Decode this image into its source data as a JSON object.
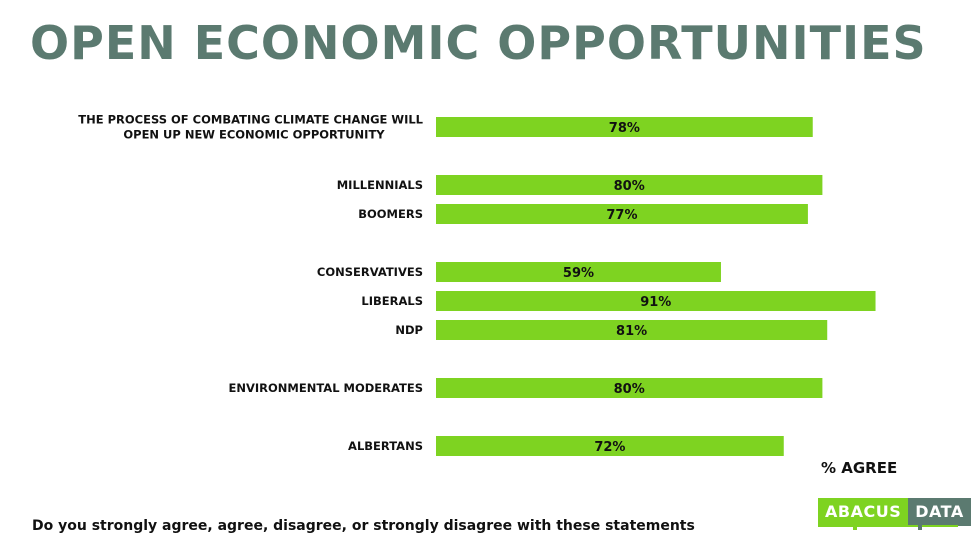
{
  "title": "OPEN ECONOMIC OPPORTUNITIES",
  "unit_label": "% AGREE",
  "footnote": "Do you strongly agree, agree, disagree, or strongly disagree with these statements",
  "logo": {
    "left": "ABACUS",
    "right": "DATA"
  },
  "colors": {
    "bar": "#7ED321",
    "title": "#5B7A70",
    "logo_dark": "#5B7A70"
  },
  "chart_data": {
    "type": "bar",
    "orientation": "horizontal",
    "categories": [
      [
        "THE PROCESS OF COMBATING CLIMATE CHANGE WILL",
        "OPEN UP NEW ECONOMIC OPPORTUNITY"
      ],
      [
        "MILLENNIALS"
      ],
      [
        "BOOMERS"
      ],
      [
        "CONSERVATIVES"
      ],
      [
        "LIBERALS"
      ],
      [
        "NDP"
      ],
      [
        "ENVIRONMENTAL MODERATES"
      ],
      [
        "ALBERTANS"
      ]
    ],
    "values": [
      78,
      80,
      77,
      59,
      91,
      81,
      80,
      72
    ],
    "value_labels": [
      "78%",
      "80%",
      "77%",
      "59%",
      "91%",
      "81%",
      "80%",
      "72%"
    ],
    "group": [
      0,
      1,
      1,
      2,
      2,
      2,
      3,
      4
    ],
    "xlabel": "% AGREE",
    "xlim": [
      0,
      100
    ],
    "grid": false,
    "legend": "none"
  }
}
